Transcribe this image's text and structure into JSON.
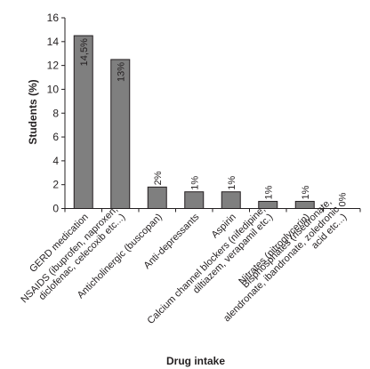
{
  "chart_data": {
    "type": "bar",
    "xlabel": "Drug intake",
    "ylabel": "Students (%)",
    "ylim": [
      0,
      16
    ],
    "yticks": [
      0,
      2,
      4,
      6,
      8,
      10,
      12,
      14,
      16
    ],
    "grid": false,
    "categories": [
      "GERD medication",
      "NSAIDS (ibuprofen, naproxen, diclofenac, celecoxib etc...)",
      "Anticholinergic (buscopan)",
      "Anti-depressants",
      "Aspirin",
      "Calcium channel blockers (nifedipine, diltiazem, verapamil etc.)",
      "Nitrates (nitroglycerin)",
      "Bisphosphates (risedronate, alendronate, ibandronate, zoledronic acid etc...)"
    ],
    "category_lines": [
      [
        "GERD medication"
      ],
      [
        "NSAIDS (ibuprofen, naproxen,",
        "diclofenac, celecoxib etc...)"
      ],
      [
        "Anticholinergic (buscopan)"
      ],
      [
        "Anti-depressants"
      ],
      [
        "Aspirin"
      ],
      [
        "Calcium channel blockers (nifedipine,",
        "diltiazem, verapamil etc.)"
      ],
      [
        "Nitrates (nitroglycerin)"
      ],
      [
        "Bisphosphates (risedronate,",
        "alendronate, ibandronate, zoledronic",
        "acid etc...)"
      ]
    ],
    "values": [
      14.5,
      12.5,
      1.8,
      1.4,
      1.4,
      0.6,
      0.6,
      0
    ],
    "data_labels": [
      "14,5%",
      "13%",
      "2%",
      "1%",
      "1%",
      "1%",
      "1%",
      "0%"
    ],
    "bar_color": "#7f7f7f",
    "bar_stroke": "#231f20"
  }
}
